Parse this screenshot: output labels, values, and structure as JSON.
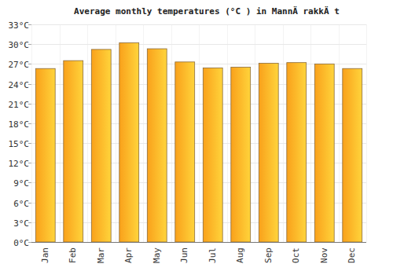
{
  "chart_data": {
    "type": "bar",
    "title": "Average monthly temperatures (°C ) in MannÄ rakkÄ t",
    "categories": [
      "Jan",
      "Feb",
      "Mar",
      "Apr",
      "May",
      "Jun",
      "Jul",
      "Aug",
      "Sep",
      "Oct",
      "Nov",
      "Dec"
    ],
    "values": [
      26.3,
      27.5,
      29.2,
      30.2,
      29.3,
      27.3,
      26.4,
      26.5,
      27.1,
      27.2,
      27.0,
      26.3
    ],
    "color": "#f9a11b",
    "ylim": [
      0,
      33
    ],
    "yticks": [
      {
        "value": 0,
        "label": "0°C"
      },
      {
        "value": 3,
        "label": "3°C"
      },
      {
        "value": 6,
        "label": "6°C"
      },
      {
        "value": 9,
        "label": "9°C"
      },
      {
        "value": 12,
        "label": "12°C"
      },
      {
        "value": 15,
        "label": "15°C"
      },
      {
        "value": 18,
        "label": "18°C"
      },
      {
        "value": 21,
        "label": "21°C"
      },
      {
        "value": 24,
        "label": "24°C"
      },
      {
        "value": 27,
        "label": "27°C"
      },
      {
        "value": 30,
        "label": "30°C"
      },
      {
        "value": 33,
        "label": "33°C"
      }
    ],
    "grid": true
  }
}
